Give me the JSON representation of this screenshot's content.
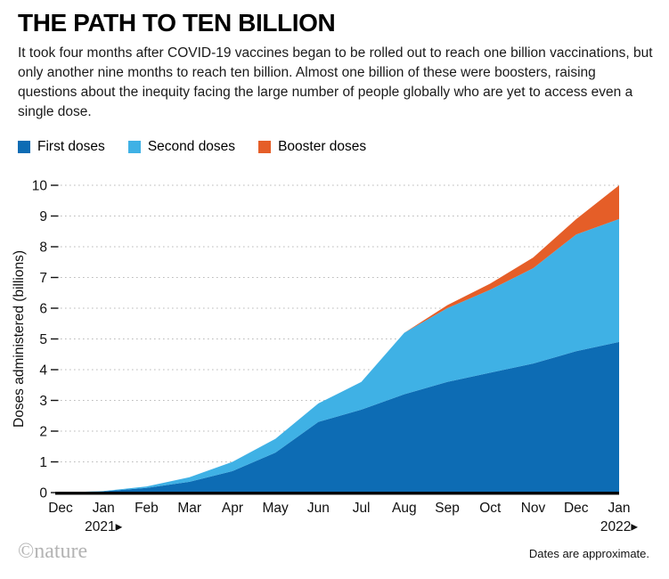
{
  "header": {
    "title": "THE PATH TO TEN BILLION",
    "description": "It took four months after COVID-19 vaccines began to be rolled out to reach one billion vaccinations, but only another nine months to reach ten billion. Almost one billion of these were boosters, raising questions about the inequity facing the large number of people globally who are yet to access even a single dose."
  },
  "chart_data": {
    "type": "area",
    "stacked": true,
    "title": "THE PATH TO TEN BILLION",
    "ylabel": "Doses administered (billions)",
    "xlabel": "",
    "ylim": [
      0,
      10
    ],
    "y_ticks": [
      0,
      1,
      2,
      3,
      4,
      5,
      6,
      7,
      8,
      9,
      10
    ],
    "grid": "dotted horizontal gridlines at each integer",
    "legend_position": "top",
    "x_categories": [
      "Dec",
      "Jan",
      "Feb",
      "Mar",
      "Apr",
      "May",
      "Jun",
      "Jul",
      "Aug",
      "Sep",
      "Oct",
      "Nov",
      "Dec",
      "Jan"
    ],
    "x_year_markers": [
      {
        "text": "2021",
        "month_index": 1
      },
      {
        "text": "2022",
        "month_index": 13
      }
    ],
    "year_marker_glyph": "▶",
    "series": [
      {
        "name": "First doses",
        "color": "#0d6cb4",
        "values": [
          0,
          0.04,
          0.15,
          0.35,
          0.7,
          1.3,
          2.3,
          2.7,
          3.2,
          3.6,
          3.9,
          4.2,
          4.6,
          4.9
        ]
      },
      {
        "name": "Second doses",
        "color": "#3fb1e5",
        "values": [
          0,
          0.01,
          0.05,
          0.15,
          0.3,
          0.45,
          0.6,
          0.9,
          2.0,
          2.4,
          2.7,
          3.1,
          3.8,
          4.0
        ]
      },
      {
        "name": "Booster doses",
        "color": "#e55e28",
        "values": [
          0,
          0,
          0,
          0,
          0,
          0,
          0,
          0,
          0,
          0.1,
          0.2,
          0.35,
          0.5,
          1.1
        ]
      }
    ],
    "gridline_color": "#bbbbbb",
    "axis_color": "#000000"
  },
  "footer": {
    "credit": "©nature",
    "note": "Dates are approximate."
  }
}
